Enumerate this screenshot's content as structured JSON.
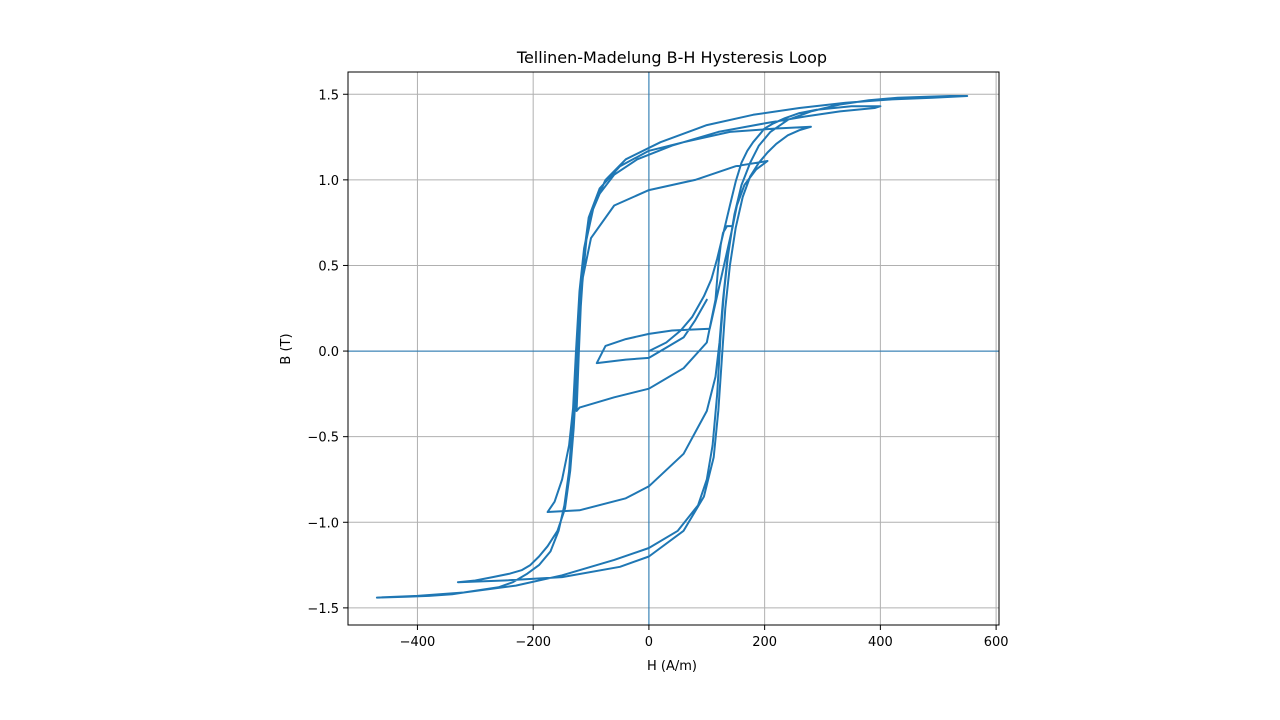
{
  "chart_data": {
    "type": "line",
    "title": "Tellinen-Madelung B-H Hysteresis Loop",
    "xlabel": "H (A/m)",
    "ylabel": "B (T)",
    "xlim": [
      -520,
      605
    ],
    "ylim": [
      -1.6,
      1.63
    ],
    "xticks": [
      -400,
      -200,
      0,
      200,
      400,
      600
    ],
    "xtick_labels": [
      "−400",
      "−200",
      "0",
      "200",
      "400",
      "600"
    ],
    "yticks": [
      -1.5,
      -1.0,
      -0.5,
      0.0,
      0.5,
      1.0,
      1.5
    ],
    "ytick_labels": [
      "−1.5",
      "−1.0",
      "−0.5",
      "0.0",
      "0.5",
      "1.0",
      "1.5"
    ],
    "grid": true,
    "reference_lines": {
      "x": 0,
      "y": 0
    },
    "series": [
      {
        "color": "#1f77b4",
        "x": [
          0,
          30,
          55,
          75,
          95,
          108,
          118,
          128,
          140,
          150,
          160,
          170,
          180,
          190,
          200,
          215,
          235,
          260,
          290,
          320,
          350,
          380,
          400,
          390,
          330,
          270,
          200,
          120,
          40,
          -20,
          -60,
          -85,
          -100,
          -112,
          -120,
          -126,
          -132,
          -138,
          -146,
          -156,
          -170,
          -190,
          -210,
          -235,
          -260,
          -300,
          -340,
          -380,
          -420,
          -470,
          -400,
          -320,
          -230,
          -150,
          -60,
          0,
          50,
          85,
          100,
          110,
          118,
          124,
          130,
          138,
          148,
          160,
          175,
          190,
          210,
          240,
          280,
          330,
          380,
          430,
          480,
          520,
          550,
          490,
          420,
          340,
          260,
          180,
          100,
          20,
          -40,
          -75,
          -95,
          -108,
          -115,
          -120,
          -125,
          -130,
          -136,
          -145,
          -158,
          -175,
          -190,
          -205,
          -220,
          -240,
          -270,
          -300,
          -330,
          -250,
          -150,
          -50,
          0,
          60,
          95,
          112,
          120,
          126,
          132,
          140,
          150,
          162,
          175,
          190,
          205,
          220,
          240,
          260,
          280,
          220,
          140,
          60,
          0,
          -50,
          -85,
          -104,
          -113,
          -119,
          -124,
          -130,
          -138,
          -150,
          -163,
          -175,
          -120,
          -40,
          0,
          60,
          100,
          115,
          122,
          128,
          135,
          143,
          152,
          165,
          185,
          205,
          150,
          80,
          0,
          -60,
          -100,
          -116,
          -121,
          -125,
          -120,
          -60,
          0,
          60,
          100,
          115,
          120,
          124,
          128,
          135,
          145,
          105,
          40,
          0,
          -40,
          -75,
          -90,
          -40,
          0,
          30,
          60,
          80,
          100
        ],
        "y": [
          0.0,
          0.05,
          0.12,
          0.2,
          0.32,
          0.42,
          0.54,
          0.68,
          0.85,
          0.99,
          1.1,
          1.17,
          1.22,
          1.26,
          1.3,
          1.33,
          1.36,
          1.39,
          1.41,
          1.42,
          1.43,
          1.43,
          1.43,
          1.42,
          1.4,
          1.37,
          1.33,
          1.28,
          1.2,
          1.12,
          1.03,
          0.92,
          0.8,
          0.6,
          0.35,
          0.0,
          -0.4,
          -0.7,
          -0.9,
          -1.05,
          -1.17,
          -1.25,
          -1.3,
          -1.35,
          -1.38,
          -1.4,
          -1.42,
          -1.43,
          -1.435,
          -1.44,
          -1.43,
          -1.41,
          -1.37,
          -1.31,
          -1.22,
          -1.15,
          -1.05,
          -0.9,
          -0.75,
          -0.55,
          -0.25,
          0.1,
          0.35,
          0.6,
          0.8,
          0.97,
          1.1,
          1.2,
          1.28,
          1.35,
          1.4,
          1.44,
          1.465,
          1.48,
          1.485,
          1.49,
          1.49,
          1.48,
          1.47,
          1.45,
          1.42,
          1.38,
          1.32,
          1.22,
          1.12,
          1.0,
          0.85,
          0.65,
          0.4,
          0.15,
          -0.15,
          -0.45,
          -0.7,
          -0.92,
          -1.05,
          -1.14,
          -1.2,
          -1.25,
          -1.28,
          -1.3,
          -1.32,
          -1.34,
          -1.35,
          -1.34,
          -1.32,
          -1.26,
          -1.2,
          -1.05,
          -0.85,
          -0.62,
          -0.35,
          -0.05,
          0.25,
          0.5,
          0.72,
          0.9,
          1.02,
          1.1,
          1.16,
          1.21,
          1.26,
          1.29,
          1.31,
          1.3,
          1.28,
          1.22,
          1.17,
          1.08,
          0.95,
          0.78,
          0.55,
          0.3,
          0.0,
          -0.3,
          -0.55,
          -0.75,
          -0.88,
          -0.94,
          -0.93,
          -0.86,
          -0.79,
          -0.6,
          -0.35,
          -0.15,
          0.05,
          0.3,
          0.52,
          0.7,
          0.85,
          0.97,
          1.06,
          1.11,
          1.08,
          1.0,
          0.94,
          0.85,
          0.66,
          0.4,
          0.0,
          -0.35,
          -0.33,
          -0.27,
          -0.22,
          -0.1,
          0.05,
          0.3,
          0.5,
          0.62,
          0.69,
          0.73,
          0.73,
          0.13,
          0.12,
          0.1,
          0.07,
          0.03,
          -0.07,
          -0.05,
          -0.04,
          0.02,
          0.08,
          0.18,
          0.3
        ]
      }
    ]
  }
}
